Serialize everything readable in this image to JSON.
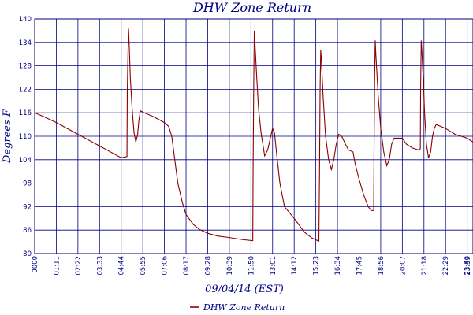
{
  "chart_data": {
    "type": "line",
    "title": "DHW Zone Return",
    "xlabel": "09/04/14 (EST)",
    "ylabel": "Degrees F",
    "ylim": [
      80,
      140
    ],
    "xlim": [
      "00:00",
      "23:59"
    ],
    "grid": true,
    "legend_position": "bottom-center",
    "y_ticks": [
      "80",
      "86",
      "92",
      "98",
      "104",
      "110",
      "116",
      "122",
      "128",
      "134",
      "140"
    ],
    "x_ticks": [
      "0000",
      "01:11",
      "02:22",
      "03:33",
      "04:44",
      "05:55",
      "07:06",
      "08:17",
      "09:28",
      "10:39",
      "11:50",
      "13:01",
      "14:12",
      "15:23",
      "16:34",
      "17:45",
      "18:56",
      "20:07",
      "21:18",
      "22:29",
      "23:40",
      "23:59"
    ],
    "series": [
      {
        "name": "DHW Zone Return",
        "color": "#8b0000",
        "points": [
          [
            "00:00",
            116
          ],
          [
            "00:30",
            115
          ],
          [
            "01:11",
            113.5
          ],
          [
            "02:22",
            110.5
          ],
          [
            "03:33",
            107.5
          ],
          [
            "04:44",
            104.5
          ],
          [
            "05:03",
            104.8
          ],
          [
            "05:04",
            121
          ],
          [
            "05:06",
            130
          ],
          [
            "05:08",
            137.5
          ],
          [
            "05:10",
            134
          ],
          [
            "05:14",
            125
          ],
          [
            "05:20",
            117
          ],
          [
            "05:26",
            111
          ],
          [
            "05:32",
            108.5
          ],
          [
            "05:38",
            110.5
          ],
          [
            "05:42",
            114
          ],
          [
            "05:47",
            116.5
          ],
          [
            "06:00",
            116
          ],
          [
            "06:30",
            115
          ],
          [
            "07:06",
            113.5
          ],
          [
            "07:20",
            112.5
          ],
          [
            "07:30",
            110
          ],
          [
            "07:40",
            104
          ],
          [
            "07:50",
            98
          ],
          [
            "08:05",
            93
          ],
          [
            "08:17",
            90
          ],
          [
            "08:40",
            87.5
          ],
          [
            "09:00",
            86.2
          ],
          [
            "09:28",
            85.2
          ],
          [
            "10:00",
            84.5
          ],
          [
            "10:39",
            84.1
          ],
          [
            "11:20",
            83.6
          ],
          [
            "11:56",
            83.3
          ],
          [
            "11:57",
            100
          ],
          [
            "11:59",
            122
          ],
          [
            "12:01",
            137
          ],
          [
            "12:03",
            134
          ],
          [
            "12:09",
            125
          ],
          [
            "12:15",
            117
          ],
          [
            "12:23",
            111
          ],
          [
            "12:35",
            105
          ],
          [
            "12:45",
            106.5
          ],
          [
            "12:55",
            110
          ],
          [
            "13:01",
            112
          ],
          [
            "13:07",
            111
          ],
          [
            "13:15",
            105
          ],
          [
            "13:25",
            98
          ],
          [
            "13:40",
            92
          ],
          [
            "14:12",
            89
          ],
          [
            "14:45",
            85.5
          ],
          [
            "15:10",
            84
          ],
          [
            "15:23",
            83.5
          ],
          [
            "15:33",
            83.2
          ],
          [
            "15:35",
            100
          ],
          [
            "15:37",
            122
          ],
          [
            "15:39",
            132
          ],
          [
            "15:41",
            130
          ],
          [
            "15:47",
            120
          ],
          [
            "15:55",
            110
          ],
          [
            "16:05",
            104
          ],
          [
            "16:14",
            101.5
          ],
          [
            "16:22",
            104
          ],
          [
            "16:30",
            108
          ],
          [
            "16:38",
            110.5
          ],
          [
            "16:48",
            110
          ],
          [
            "17:00",
            108
          ],
          [
            "17:10",
            106.5
          ],
          [
            "17:25",
            106
          ],
          [
            "17:32",
            103
          ],
          [
            "17:45",
            99
          ],
          [
            "18:00",
            95
          ],
          [
            "18:15",
            92
          ],
          [
            "18:25",
            91
          ],
          [
            "18:33",
            91
          ],
          [
            "18:34",
            105
          ],
          [
            "18:36",
            124
          ],
          [
            "18:38",
            134.5
          ],
          [
            "18:40",
            131
          ],
          [
            "18:48",
            120
          ],
          [
            "18:56",
            112
          ],
          [
            "19:06",
            106
          ],
          [
            "19:16",
            102.5
          ],
          [
            "19:24",
            104
          ],
          [
            "19:32",
            108
          ],
          [
            "19:40",
            109.5
          ],
          [
            "20:07",
            109.5
          ],
          [
            "20:20",
            108
          ],
          [
            "20:40",
            107
          ],
          [
            "21:00",
            106.5
          ],
          [
            "21:06",
            106.8
          ],
          [
            "21:07",
            122
          ],
          [
            "21:09",
            134.5
          ],
          [
            "21:11",
            132
          ],
          [
            "21:16",
            124
          ],
          [
            "21:20",
            116
          ],
          [
            "21:26",
            108
          ],
          [
            "21:33",
            104.5
          ],
          [
            "21:40",
            106
          ],
          [
            "21:46",
            110
          ],
          [
            "21:52",
            112
          ],
          [
            "21:58",
            113
          ],
          [
            "22:29",
            112
          ],
          [
            "23:00",
            110.5
          ],
          [
            "23:40",
            109.5
          ],
          [
            "23:59",
            108.5
          ]
        ]
      }
    ]
  }
}
